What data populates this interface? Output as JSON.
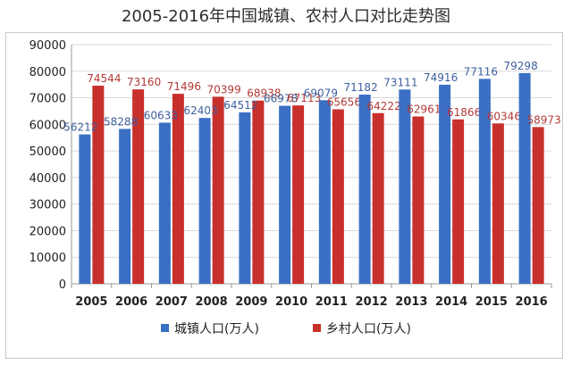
{
  "chart_data": {
    "type": "bar",
    "title": "2005-2016年中国城镇、农村人口对比走势图",
    "categories": [
      "2005",
      "2006",
      "2007",
      "2008",
      "2009",
      "2010",
      "2011",
      "2012",
      "2013",
      "2014",
      "2015",
      "2016"
    ],
    "series": [
      {
        "name": "城镇人口(万人)",
        "color": "#3a6fc4",
        "values": [
          56212,
          58288,
          60633,
          62403,
          64512,
          66978,
          69079,
          71182,
          73111,
          74916,
          77116,
          79298
        ]
      },
      {
        "name": "乡村人口(万人)",
        "color": "#c8302c",
        "values": [
          74544,
          73160,
          71496,
          70399,
          68938,
          67113,
          65656,
          64222,
          62961,
          61866,
          60346,
          58973
        ]
      }
    ],
    "yticks": [
      "0",
      "10000",
      "20000",
      "30000",
      "40000",
      "50000",
      "60000",
      "70000",
      "80000",
      "90000"
    ],
    "ylim": [
      0,
      90000
    ],
    "grid": true,
    "legend_position": "bottom"
  }
}
